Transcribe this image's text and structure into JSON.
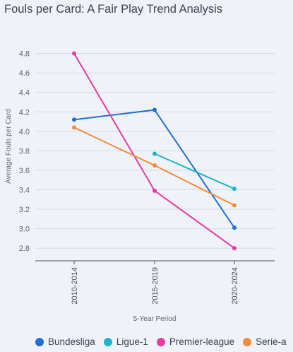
{
  "chart_data": {
    "type": "line",
    "title": "Fouls per Card: A Fair Play Trend Analysis",
    "xlabel": "5-Year Period",
    "ylabel": "Average Fouls per Card",
    "categories": [
      "2010-2014",
      "2015-2019",
      "2020-2024"
    ],
    "ylim": [
      2.67,
      4.95
    ],
    "yticks": [
      2.8,
      3.0,
      3.2,
      3.4,
      3.6,
      3.8,
      4.0,
      4.2,
      4.4,
      4.6,
      4.8
    ],
    "yticklabels": [
      "2.8",
      "3.0",
      "3.2",
      "3.4",
      "3.6",
      "3.8",
      "4.0",
      "4.2",
      "4.4",
      "4.6",
      "4.8"
    ],
    "grid": true,
    "legend_position": "bottom",
    "series": [
      {
        "name": "Bundesliga",
        "color": "#1f6fd6",
        "values": [
          4.12,
          4.22,
          3.01
        ]
      },
      {
        "name": "Ligue-1",
        "color": "#20b4c8",
        "values": [
          null,
          3.77,
          3.41
        ]
      },
      {
        "name": "Premier-league",
        "color": "#e23e9e",
        "values": [
          4.8,
          3.39,
          2.8
        ]
      },
      {
        "name": "Serie-a",
        "color": "#f28c3c",
        "values": [
          4.04,
          3.65,
          3.24
        ]
      }
    ]
  }
}
